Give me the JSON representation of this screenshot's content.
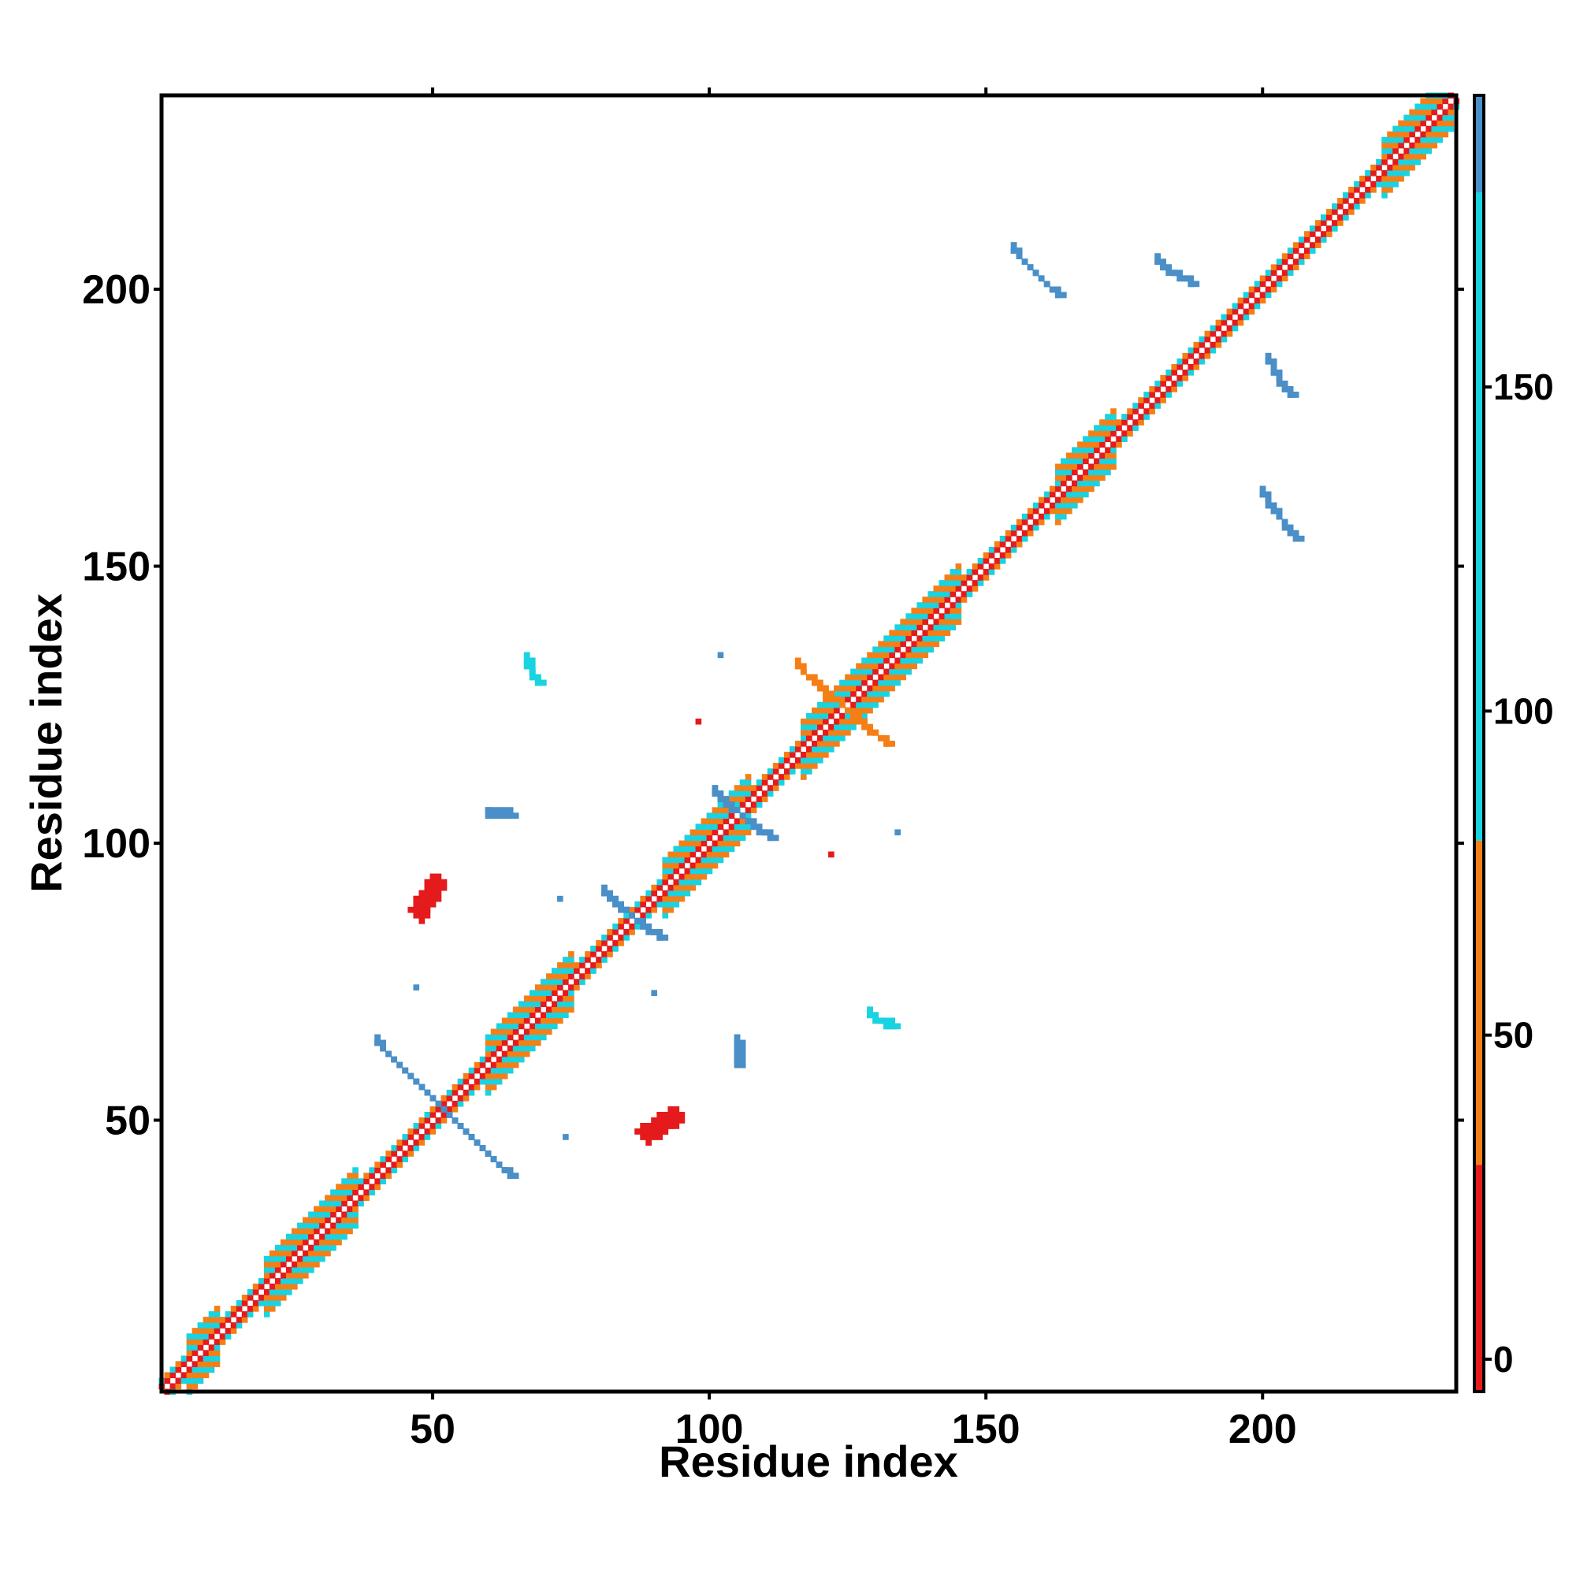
{
  "chart_data": {
    "type": "heatmap",
    "title": "",
    "xlabel": "Residue index",
    "ylabel": "Residue index",
    "xlim": [
      1,
      235
    ],
    "ylim": [
      1,
      235
    ],
    "xticks": [
      50,
      100,
      150,
      200
    ],
    "yticks": [
      50,
      100,
      150,
      200
    ],
    "grid": false,
    "colorbar": {
      "ticks": [
        0,
        50,
        100,
        150
      ],
      "range": [
        -5,
        195
      ],
      "bands": [
        {
          "from": -5,
          "to": 30,
          "color": "#e41a1c"
        },
        {
          "from": 30,
          "to": 80,
          "color": "#f57f17"
        },
        {
          "from": 80,
          "to": 180,
          "color": "#19d3e0"
        },
        {
          "from": 180,
          "to": 195,
          "color": "#4a8fc7"
        }
      ]
    },
    "diagonal_band": {
      "width": 5,
      "inner_color": "#e41a1c",
      "outer_colors": [
        "#f57f17",
        "#19d3e0"
      ]
    },
    "helix_segments": [
      [
        6,
        11
      ],
      [
        20,
        36
      ],
      [
        60,
        75
      ],
      [
        92,
        107
      ],
      [
        117,
        145
      ],
      [
        163,
        173
      ],
      [
        222,
        234
      ]
    ],
    "clusters": [
      {
        "x": 52,
        "y": 52,
        "dx": 12,
        "dy": -12,
        "w": 3,
        "color": "#4a8fc7"
      },
      {
        "x": 86,
        "y": 87,
        "dx": 5,
        "dy": -4,
        "w": 3,
        "color": "#4a8fc7"
      },
      {
        "x": 106,
        "y": 105,
        "dx": 5,
        "dy": -4,
        "w": 3,
        "color": "#4a8fc7"
      },
      {
        "x": 124,
        "y": 125,
        "dx": 8,
        "dy": -7,
        "w": 3,
        "color": "#f57f17"
      },
      {
        "x": 49,
        "y": 90,
        "dx": 2,
        "dy": 3,
        "w": 4,
        "color": "#e41a1c"
      },
      {
        "x": 91,
        "y": 49,
        "dx": 3,
        "dy": 2,
        "w": 4,
        "color": "#e41a1c"
      },
      {
        "x": 68,
        "y": 131,
        "dx": 1,
        "dy": -2,
        "w": 3,
        "color": "#19d3e0"
      },
      {
        "x": 131,
        "y": 68,
        "dx": -2,
        "dy": 1,
        "w": 3,
        "color": "#19d3e0"
      },
      {
        "x": 62,
        "y": 105,
        "dx": 2,
        "dy": 0,
        "w": 2,
        "color": "#4a8fc7"
      },
      {
        "x": 105,
        "y": 62,
        "dx": 0,
        "dy": 2,
        "w": 2,
        "color": "#4a8fc7"
      },
      {
        "x": 159,
        "y": 203,
        "dx": 4,
        "dy": -4,
        "w": 2,
        "color": "#4a8fc7"
      },
      {
        "x": 184,
        "y": 203,
        "dx": 3,
        "dy": -2,
        "w": 2,
        "color": "#4a8fc7"
      },
      {
        "x": 203,
        "y": 184,
        "dx": 2,
        "dy": -3,
        "w": 2,
        "color": "#4a8fc7"
      },
      {
        "x": 203,
        "y": 159,
        "dx": 3,
        "dy": -4,
        "w": 2,
        "color": "#4a8fc7"
      }
    ],
    "scatter": [
      {
        "x": 98,
        "y": 122,
        "color": "#e41a1c"
      },
      {
        "x": 122,
        "y": 98,
        "color": "#e41a1c"
      },
      {
        "x": 102,
        "y": 134,
        "color": "#4a8fc7"
      },
      {
        "x": 134,
        "y": 102,
        "color": "#4a8fc7"
      },
      {
        "x": 90,
        "y": 73,
        "color": "#4a8fc7"
      },
      {
        "x": 73,
        "y": 90,
        "color": "#4a8fc7"
      },
      {
        "x": 47,
        "y": 74,
        "color": "#4a8fc7"
      },
      {
        "x": 74,
        "y": 47,
        "color": "#4a8fc7"
      }
    ]
  }
}
